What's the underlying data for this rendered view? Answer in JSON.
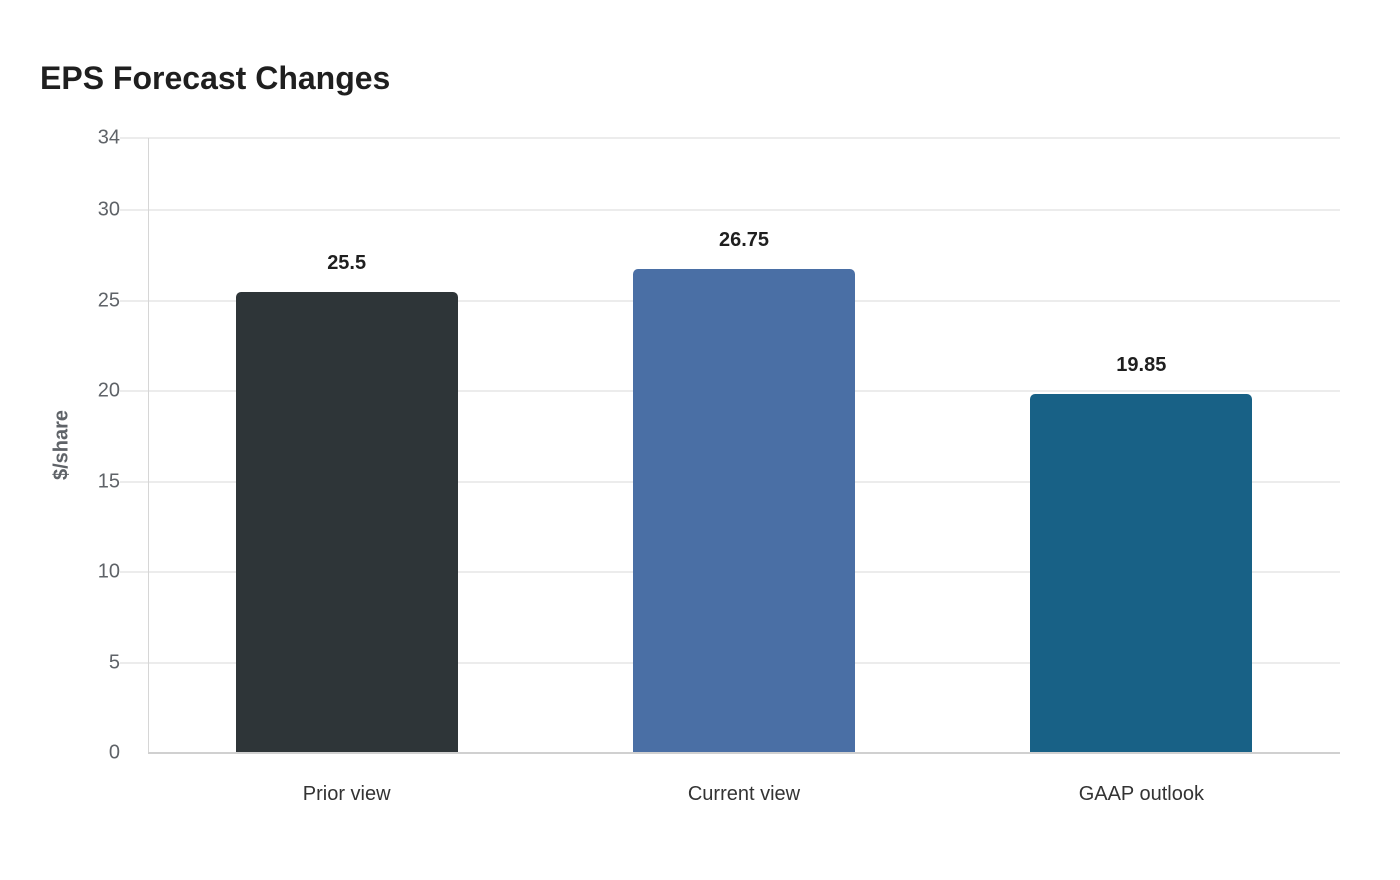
{
  "chart_data": {
    "type": "bar",
    "title": "EPS Forecast Changes",
    "xlabel": "",
    "ylabel": "$/share",
    "categories": [
      "Prior view",
      "Current view",
      "GAAP outlook"
    ],
    "values": [
      25.5,
      26.75,
      19.85
    ],
    "data_labels": [
      "25.5",
      "26.75",
      "19.85"
    ],
    "colors": [
      "#2e3538",
      "#4a6fa5",
      "#186186"
    ],
    "ylim": [
      0,
      34
    ],
    "yticks": [
      0,
      5,
      10,
      15,
      20,
      25,
      30,
      34
    ],
    "grid": true,
    "legend": null
  }
}
